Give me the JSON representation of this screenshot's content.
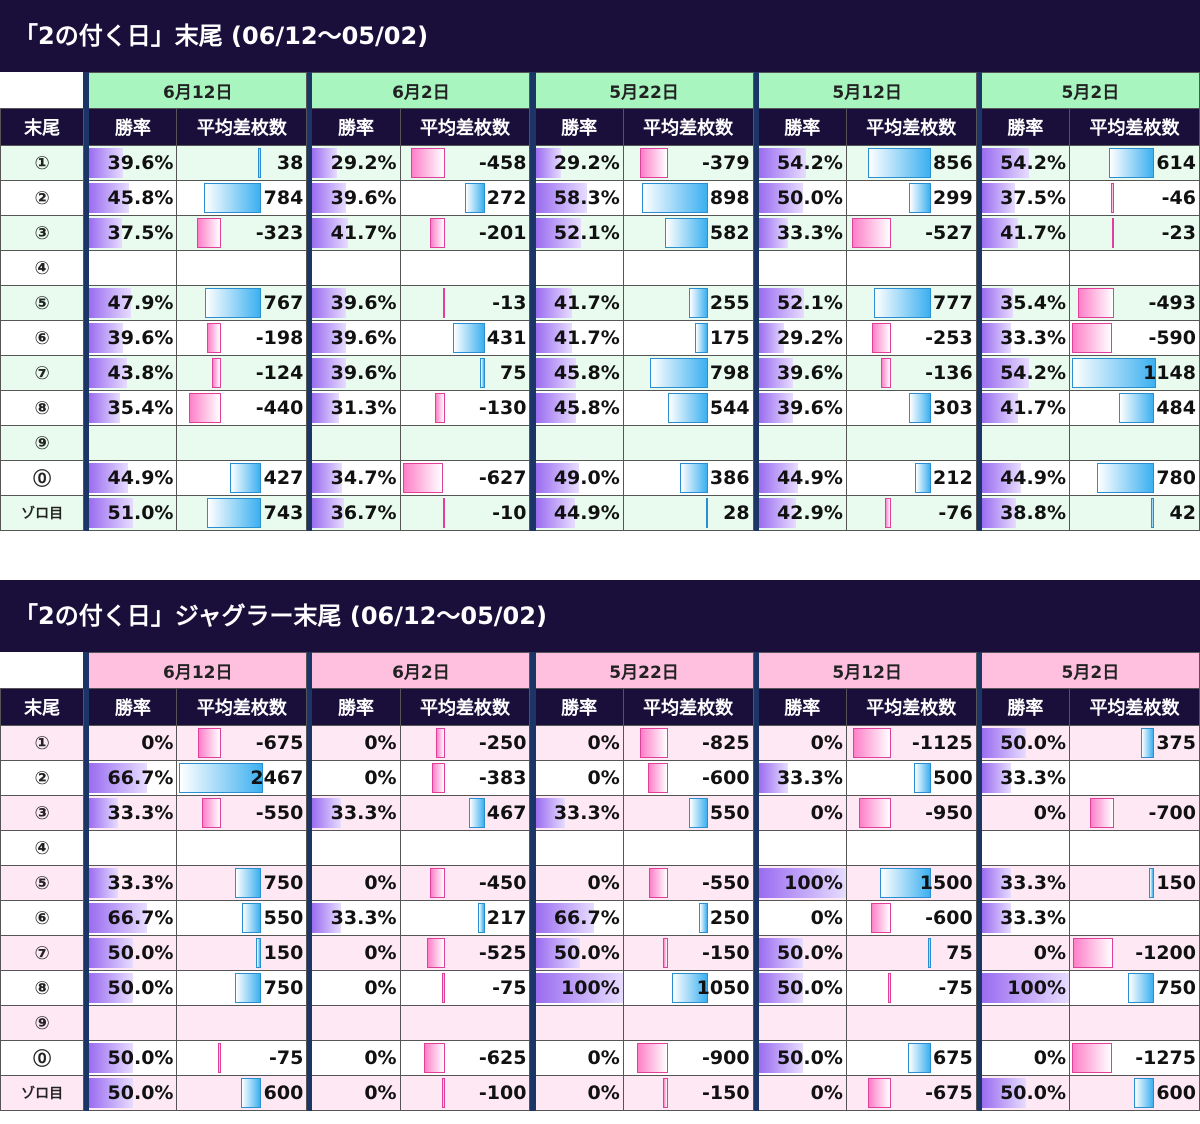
{
  "headers": {
    "tail": "末尾",
    "rate": "勝率",
    "diff": "平均差枚数"
  },
  "dates": [
    "6月12日",
    "6月2日",
    "5月22日",
    "5月12日",
    "5月2日"
  ],
  "row_labels": [
    "①",
    "②",
    "③",
    "④",
    "⑤",
    "⑥",
    "⑦",
    "⑧",
    "⑨",
    "⓪",
    "ゾロ目"
  ],
  "tables": [
    {
      "title": "「2の付く日」末尾 (06/12〜05/02)",
      "theme": "green",
      "diff_max": 1148,
      "rows": [
        [
          {
            "rate": "39.6%",
            "r": 39.6,
            "diff": "38",
            "d": 38
          },
          {
            "rate": "29.2%",
            "r": 29.2,
            "diff": "-458",
            "d": -458
          },
          {
            "rate": "29.2%",
            "r": 29.2,
            "diff": "-379",
            "d": -379
          },
          {
            "rate": "54.2%",
            "r": 54.2,
            "diff": "856",
            "d": 856
          },
          {
            "rate": "54.2%",
            "r": 54.2,
            "diff": "614",
            "d": 614
          }
        ],
        [
          {
            "rate": "45.8%",
            "r": 45.8,
            "diff": "784",
            "d": 784
          },
          {
            "rate": "39.6%",
            "r": 39.6,
            "diff": "272",
            "d": 272
          },
          {
            "rate": "58.3%",
            "r": 58.3,
            "diff": "898",
            "d": 898
          },
          {
            "rate": "50.0%",
            "r": 50.0,
            "diff": "299",
            "d": 299
          },
          {
            "rate": "37.5%",
            "r": 37.5,
            "diff": "-46",
            "d": -46
          }
        ],
        [
          {
            "rate": "37.5%",
            "r": 37.5,
            "diff": "-323",
            "d": -323
          },
          {
            "rate": "41.7%",
            "r": 41.7,
            "diff": "-201",
            "d": -201
          },
          {
            "rate": "52.1%",
            "r": 52.1,
            "diff": "582",
            "d": 582
          },
          {
            "rate": "33.3%",
            "r": 33.3,
            "diff": "-527",
            "d": -527
          },
          {
            "rate": "41.7%",
            "r": 41.7,
            "diff": "-23",
            "d": -23
          }
        ],
        [
          {
            "rate": "",
            "r": 0,
            "diff": "",
            "d": 0
          },
          {
            "rate": "",
            "r": 0,
            "diff": "",
            "d": 0
          },
          {
            "rate": "",
            "r": 0,
            "diff": "",
            "d": 0
          },
          {
            "rate": "",
            "r": 0,
            "diff": "",
            "d": 0
          },
          {
            "rate": "",
            "r": 0,
            "diff": "",
            "d": 0
          }
        ],
        [
          {
            "rate": "47.9%",
            "r": 47.9,
            "diff": "767",
            "d": 767
          },
          {
            "rate": "39.6%",
            "r": 39.6,
            "diff": "-13",
            "d": -13
          },
          {
            "rate": "41.7%",
            "r": 41.7,
            "diff": "255",
            "d": 255
          },
          {
            "rate": "52.1%",
            "r": 52.1,
            "diff": "777",
            "d": 777
          },
          {
            "rate": "35.4%",
            "r": 35.4,
            "diff": "-493",
            "d": -493
          }
        ],
        [
          {
            "rate": "39.6%",
            "r": 39.6,
            "diff": "-198",
            "d": -198
          },
          {
            "rate": "39.6%",
            "r": 39.6,
            "diff": "431",
            "d": 431
          },
          {
            "rate": "41.7%",
            "r": 41.7,
            "diff": "175",
            "d": 175
          },
          {
            "rate": "29.2%",
            "r": 29.2,
            "diff": "-253",
            "d": -253
          },
          {
            "rate": "33.3%",
            "r": 33.3,
            "diff": "-590",
            "d": -590
          }
        ],
        [
          {
            "rate": "43.8%",
            "r": 43.8,
            "diff": "-124",
            "d": -124
          },
          {
            "rate": "39.6%",
            "r": 39.6,
            "diff": "75",
            "d": 75
          },
          {
            "rate": "45.8%",
            "r": 45.8,
            "diff": "798",
            "d": 798
          },
          {
            "rate": "39.6%",
            "r": 39.6,
            "diff": "-136",
            "d": -136
          },
          {
            "rate": "54.2%",
            "r": 54.2,
            "diff": "1148",
            "d": 1148
          }
        ],
        [
          {
            "rate": "35.4%",
            "r": 35.4,
            "diff": "-440",
            "d": -440
          },
          {
            "rate": "31.3%",
            "r": 31.3,
            "diff": "-130",
            "d": -130
          },
          {
            "rate": "45.8%",
            "r": 45.8,
            "diff": "544",
            "d": 544
          },
          {
            "rate": "39.6%",
            "r": 39.6,
            "diff": "303",
            "d": 303
          },
          {
            "rate": "41.7%",
            "r": 41.7,
            "diff": "484",
            "d": 484
          }
        ],
        [
          {
            "rate": "",
            "r": 0,
            "diff": "",
            "d": 0
          },
          {
            "rate": "",
            "r": 0,
            "diff": "",
            "d": 0
          },
          {
            "rate": "",
            "r": 0,
            "diff": "",
            "d": 0
          },
          {
            "rate": "",
            "r": 0,
            "diff": "",
            "d": 0
          },
          {
            "rate": "",
            "r": 0,
            "diff": "",
            "d": 0
          }
        ],
        [
          {
            "rate": "44.9%",
            "r": 44.9,
            "diff": "427",
            "d": 427
          },
          {
            "rate": "34.7%",
            "r": 34.7,
            "diff": "-627",
            "d": -627
          },
          {
            "rate": "49.0%",
            "r": 49.0,
            "diff": "386",
            "d": 386
          },
          {
            "rate": "44.9%",
            "r": 44.9,
            "diff": "212",
            "d": 212
          },
          {
            "rate": "44.9%",
            "r": 44.9,
            "diff": "780",
            "d": 780
          }
        ],
        [
          {
            "rate": "51.0%",
            "r": 51.0,
            "diff": "743",
            "d": 743
          },
          {
            "rate": "36.7%",
            "r": 36.7,
            "diff": "-10",
            "d": -10
          },
          {
            "rate": "44.9%",
            "r": 44.9,
            "diff": "28",
            "d": 28
          },
          {
            "rate": "42.9%",
            "r": 42.9,
            "diff": "-76",
            "d": -76
          },
          {
            "rate": "38.8%",
            "r": 38.8,
            "diff": "42",
            "d": 42
          }
        ]
      ]
    },
    {
      "title": "「2の付く日」ジャグラー末尾 (06/12〜05/02)",
      "theme": "pink",
      "diff_max": 2467,
      "rows": [
        [
          {
            "rate": "0%",
            "r": 0,
            "diff": "-675",
            "d": -675
          },
          {
            "rate": "0%",
            "r": 0,
            "diff": "-250",
            "d": -250
          },
          {
            "rate": "0%",
            "r": 0,
            "diff": "-825",
            "d": -825
          },
          {
            "rate": "0%",
            "r": 0,
            "diff": "-1125",
            "d": -1125
          },
          {
            "rate": "50.0%",
            "r": 50.0,
            "diff": "375",
            "d": 375
          }
        ],
        [
          {
            "rate": "66.7%",
            "r": 66.7,
            "diff": "2467",
            "d": 2467
          },
          {
            "rate": "0%",
            "r": 0,
            "diff": "-383",
            "d": -383
          },
          {
            "rate": "0%",
            "r": 0,
            "diff": "-600",
            "d": -600
          },
          {
            "rate": "33.3%",
            "r": 33.3,
            "diff": "500",
            "d": 500
          },
          {
            "rate": "33.3%",
            "r": 33.3,
            "diff": "",
            "d": 0
          }
        ],
        [
          {
            "rate": "33.3%",
            "r": 33.3,
            "diff": "-550",
            "d": -550
          },
          {
            "rate": "33.3%",
            "r": 33.3,
            "diff": "467",
            "d": 467
          },
          {
            "rate": "33.3%",
            "r": 33.3,
            "diff": "550",
            "d": 550
          },
          {
            "rate": "0%",
            "r": 0,
            "diff": "-950",
            "d": -950
          },
          {
            "rate": "0%",
            "r": 0,
            "diff": "-700",
            "d": -700
          }
        ],
        [
          {
            "rate": "",
            "r": 0,
            "diff": "",
            "d": 0
          },
          {
            "rate": "",
            "r": 0,
            "diff": "",
            "d": 0
          },
          {
            "rate": "",
            "r": 0,
            "diff": "",
            "d": 0
          },
          {
            "rate": "",
            "r": 0,
            "diff": "",
            "d": 0
          },
          {
            "rate": "",
            "r": 0,
            "diff": "",
            "d": 0
          }
        ],
        [
          {
            "rate": "33.3%",
            "r": 33.3,
            "diff": "750",
            "d": 750
          },
          {
            "rate": "0%",
            "r": 0,
            "diff": "-450",
            "d": -450
          },
          {
            "rate": "0%",
            "r": 0,
            "diff": "-550",
            "d": -550
          },
          {
            "rate": "100%",
            "r": 100,
            "diff": "1500",
            "d": 1500
          },
          {
            "rate": "33.3%",
            "r": 33.3,
            "diff": "150",
            "d": 150
          }
        ],
        [
          {
            "rate": "66.7%",
            "r": 66.7,
            "diff": "550",
            "d": 550
          },
          {
            "rate": "33.3%",
            "r": 33.3,
            "diff": "217",
            "d": 217
          },
          {
            "rate": "66.7%",
            "r": 66.7,
            "diff": "250",
            "d": 250
          },
          {
            "rate": "0%",
            "r": 0,
            "diff": "-600",
            "d": -600
          },
          {
            "rate": "33.3%",
            "r": 33.3,
            "diff": "",
            "d": 0
          }
        ],
        [
          {
            "rate": "50.0%",
            "r": 50.0,
            "diff": "150",
            "d": 150
          },
          {
            "rate": "0%",
            "r": 0,
            "diff": "-525",
            "d": -525
          },
          {
            "rate": "50.0%",
            "r": 50.0,
            "diff": "-150",
            "d": -150
          },
          {
            "rate": "50.0%",
            "r": 50.0,
            "diff": "75",
            "d": 75
          },
          {
            "rate": "0%",
            "r": 0,
            "diff": "-1200",
            "d": -1200
          }
        ],
        [
          {
            "rate": "50.0%",
            "r": 50.0,
            "diff": "750",
            "d": 750
          },
          {
            "rate": "0%",
            "r": 0,
            "diff": "-75",
            "d": -75
          },
          {
            "rate": "100%",
            "r": 100,
            "diff": "1050",
            "d": 1050
          },
          {
            "rate": "50.0%",
            "r": 50.0,
            "diff": "-75",
            "d": -75
          },
          {
            "rate": "100%",
            "r": 100,
            "diff": "750",
            "d": 750
          }
        ],
        [
          {
            "rate": "",
            "r": 0,
            "diff": "",
            "d": 0
          },
          {
            "rate": "",
            "r": 0,
            "diff": "",
            "d": 0
          },
          {
            "rate": "",
            "r": 0,
            "diff": "",
            "d": 0
          },
          {
            "rate": "",
            "r": 0,
            "diff": "",
            "d": 0
          },
          {
            "rate": "",
            "r": 0,
            "diff": "",
            "d": 0
          }
        ],
        [
          {
            "rate": "50.0%",
            "r": 50.0,
            "diff": "-75",
            "d": -75
          },
          {
            "rate": "0%",
            "r": 0,
            "diff": "-625",
            "d": -625
          },
          {
            "rate": "0%",
            "r": 0,
            "diff": "-900",
            "d": -900
          },
          {
            "rate": "50.0%",
            "r": 50.0,
            "diff": "675",
            "d": 675
          },
          {
            "rate": "0%",
            "r": 0,
            "diff": "-1275",
            "d": -1275
          }
        ],
        [
          {
            "rate": "50.0%",
            "r": 50.0,
            "diff": "600",
            "d": 600
          },
          {
            "rate": "0%",
            "r": 0,
            "diff": "-100",
            "d": -100
          },
          {
            "rate": "0%",
            "r": 0,
            "diff": "-150",
            "d": -150
          },
          {
            "rate": "0%",
            "r": 0,
            "diff": "-675",
            "d": -675
          },
          {
            "rate": "50.0%",
            "r": 50.0,
            "diff": "600",
            "d": 600
          }
        ]
      ]
    }
  ]
}
